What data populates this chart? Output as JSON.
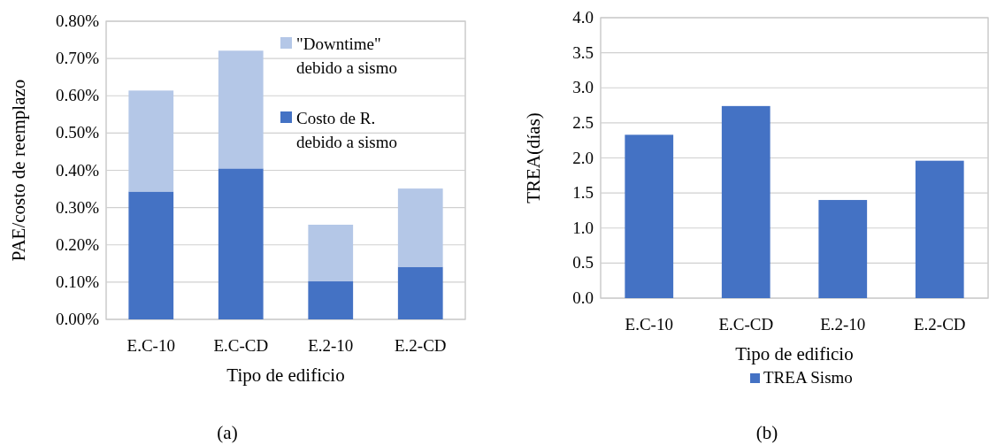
{
  "chart_data": [
    {
      "type": "bar",
      "stacked": true,
      "ylabel": "PAE/costo de reemplazo",
      "xlabel": "Tipo de edificio",
      "categories": [
        "E.C-10",
        "E.C-CD",
        "E.2-10",
        "E.2-CD"
      ],
      "series": [
        {
          "name": "Costo de R. debido a sismo",
          "color": "#4472c4",
          "values": [
            0.343,
            0.405,
            0.102,
            0.141
          ]
        },
        {
          "name": "\"Downtime\" debido a sismo",
          "color": "#b4c7e7",
          "values": [
            0.271,
            0.316,
            0.152,
            0.21
          ]
        }
      ],
      "ylim": [
        0,
        0.8
      ],
      "yticks": [
        {
          "value": 0,
          "label": "0.00%"
        },
        {
          "value": 0.1,
          "label": "0.10%"
        },
        {
          "value": 0.2,
          "label": "0.20%"
        },
        {
          "value": 0.3,
          "label": "0.30%"
        },
        {
          "value": 0.4,
          "label": "0.40%"
        },
        {
          "value": 0.5,
          "label": "0.50%"
        },
        {
          "value": 0.6,
          "label": "0.60%"
        },
        {
          "value": 0.7,
          "label": "0.70%"
        },
        {
          "value": 0.8,
          "label": "0.80%"
        }
      ],
      "grid": "y",
      "legend": "top right",
      "annotations": [
        "(a)"
      ]
    },
    {
      "type": "bar",
      "ylabel": "TREA(días)",
      "xlabel": "Tipo de edificio",
      "categories": [
        "E.C-10",
        "E.C-CD",
        "E.2-10",
        "E.2-CD"
      ],
      "series": [
        {
          "name": "TREA Sismo",
          "color": "#4472c4",
          "values": [
            2.33,
            2.74,
            1.4,
            1.96
          ]
        }
      ],
      "ylim": [
        0,
        4
      ],
      "yticks": [
        {
          "value": 0,
          "label": "0.0"
        },
        {
          "value": 0.5,
          "label": "0.5"
        },
        {
          "value": 1,
          "label": "1.0"
        },
        {
          "value": 1.5,
          "label": "1.5"
        },
        {
          "value": 2,
          "label": "2.0"
        },
        {
          "value": 2.5,
          "label": "2.5"
        },
        {
          "value": 3,
          "label": "3.0"
        },
        {
          "value": 3.5,
          "label": "3.5"
        },
        {
          "value": 4,
          "label": "4.0"
        }
      ],
      "grid": "y",
      "legend": "bottom",
      "annotations": [
        "(b)"
      ]
    }
  ]
}
